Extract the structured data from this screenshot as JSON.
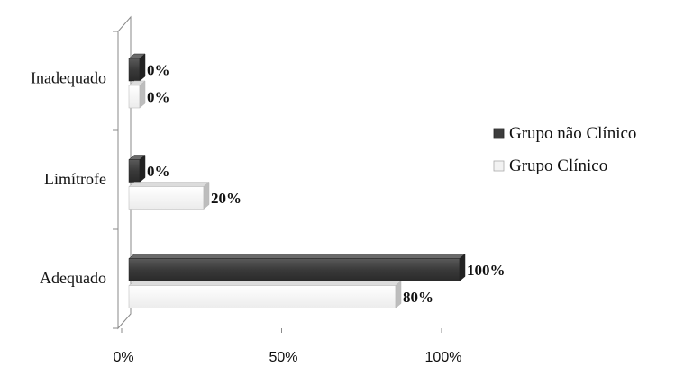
{
  "chart_data": {
    "type": "bar",
    "orientation": "horizontal",
    "three_d": true,
    "categories": [
      "Inadequado",
      "Limítrofe",
      "Adequado"
    ],
    "series": [
      {
        "name": "Grupo não Clínico",
        "values": [
          0,
          0,
          100
        ],
        "labels": [
          "0%",
          "0%",
          "100%"
        ],
        "color": "#3c3c3c"
      },
      {
        "name": "Grupo Clínico",
        "values": [
          0,
          20,
          80
        ],
        "labels": [
          "0%",
          "20%",
          "80%"
        ],
        "color": "#f2f2f2"
      }
    ],
    "x_ticks": [
      "0%",
      "50%",
      "100%"
    ],
    "xlim": [
      0,
      100
    ],
    "legend_position": "right",
    "grid": false
  }
}
